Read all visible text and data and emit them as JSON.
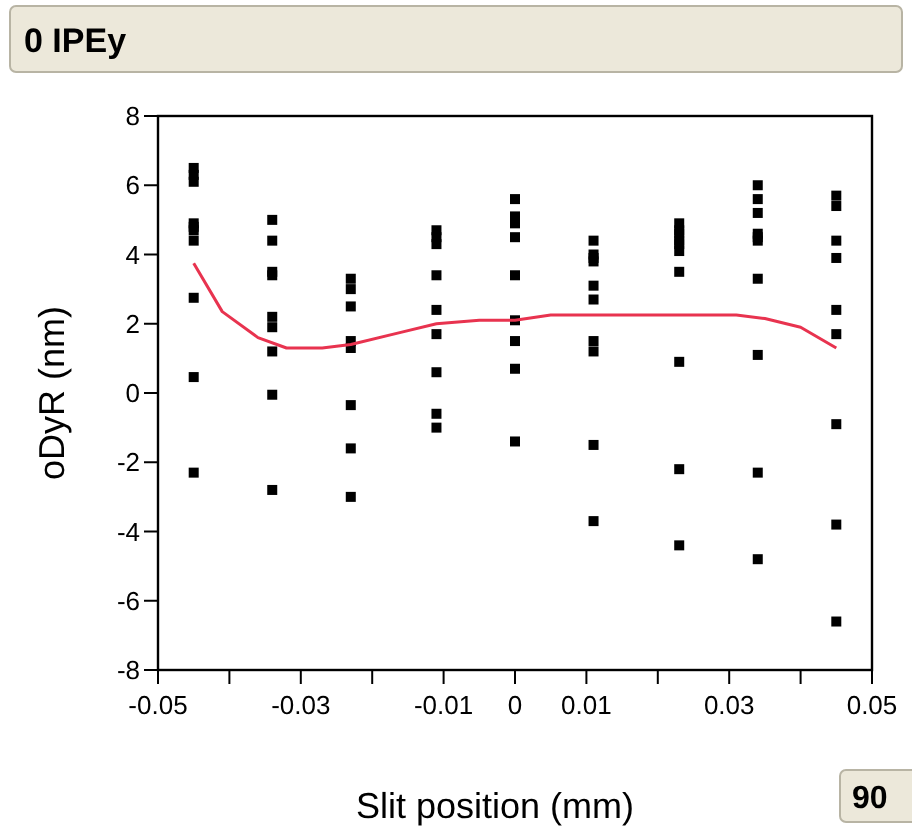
{
  "chart_data": {
    "type": "scatter",
    "title": "0 IPEy",
    "xlabel": "Slit position (mm)",
    "ylabel": "oDyR (nm)",
    "annotations": [
      "90"
    ],
    "xlim": [
      -0.05,
      0.05
    ],
    "xticks": [
      -0.05,
      {
        "value": -0.04,
        "label": null
      },
      -0.03,
      {
        "value": -0.02,
        "label": null
      },
      -0.01,
      0,
      0.01,
      {
        "value": 0.02,
        "label": null
      },
      0.03,
      {
        "value": 0.04,
        "label": null
      },
      0.05
    ],
    "ylim": [
      -8,
      8
    ],
    "yticks": [
      -8,
      -6,
      -4,
      -2,
      0,
      2,
      4,
      6,
      8
    ],
    "grid": false,
    "series": [
      {
        "color": "#000000",
        "marker": "square",
        "x": [
          -0.045,
          -0.045,
          -0.045,
          -0.045,
          -0.045,
          -0.045,
          -0.045,
          -0.045,
          -0.045,
          -0.045,
          -0.034,
          -0.034,
          -0.034,
          -0.034,
          -0.034,
          -0.034,
          -0.034,
          -0.034,
          -0.034,
          -0.023,
          -0.023,
          -0.023,
          -0.023,
          -0.023,
          -0.023,
          -0.023,
          -0.023,
          -0.011,
          -0.011,
          -0.011,
          -0.011,
          -0.011,
          -0.011,
          -0.011,
          -0.011,
          -0.011,
          0,
          0,
          0,
          0,
          0,
          0,
          0,
          0,
          0,
          0.011,
          0.011,
          0.011,
          0.011,
          0.011,
          0.011,
          0.011,
          0.011,
          0.011,
          0.011,
          0.023,
          0.023,
          0.023,
          0.023,
          0.023,
          0.023,
          0.023,
          0.023,
          0.023,
          0.023,
          0.034,
          0.034,
          0.034,
          0.034,
          0.034,
          0.034,
          0.034,
          0.034,
          0.034,
          0.034,
          0.045,
          0.045,
          0.045,
          0.045,
          0.045,
          0.045,
          0.045,
          0.045,
          0.045
        ],
        "values": [
          6.5,
          6.3,
          6.1,
          4.9,
          4.8,
          4.7,
          4.4,
          2.75,
          0.46,
          -2.3,
          5.0,
          4.4,
          3.5,
          3.4,
          2.2,
          1.9,
          1.2,
          -0.05,
          -2.8,
          3.3,
          3.0,
          2.5,
          1.5,
          1.3,
          -0.35,
          -1.6,
          -3.0,
          4.7,
          4.5,
          4.3,
          3.4,
          2.4,
          1.7,
          0.6,
          -0.6,
          -1.0,
          5.6,
          5.1,
          4.9,
          4.5,
          3.4,
          2.1,
          1.5,
          0.7,
          -1.4,
          4.4,
          4.0,
          3.9,
          3.8,
          3.1,
          2.7,
          1.5,
          1.2,
          -1.5,
          -3.7,
          4.9,
          4.7,
          4.6,
          4.4,
          4.3,
          4.1,
          3.5,
          0.9,
          -2.2,
          -4.4,
          6.0,
          5.6,
          5.2,
          4.6,
          4.5,
          4.4,
          3.3,
          1.1,
          -2.3,
          -4.8,
          5.7,
          5.4,
          4.4,
          3.9,
          2.4,
          1.7,
          -0.9,
          -3.8,
          -6.6
        ]
      },
      {
        "type": "line",
        "color": "#e8334f",
        "marker": "none",
        "line_style": "solid",
        "x": [
          -0.045,
          -0.041,
          -0.036,
          -0.032,
          -0.027,
          -0.023,
          -0.016,
          -0.011,
          -0.005,
          0,
          0.005,
          0.031,
          0.035,
          0.04,
          0.045
        ],
        "values": [
          3.75,
          2.35,
          1.6,
          1.3,
          1.3,
          1.4,
          1.75,
          2.0,
          2.1,
          2.1,
          2.25,
          2.25,
          2.15,
          1.9,
          1.3
        ]
      }
    ]
  }
}
